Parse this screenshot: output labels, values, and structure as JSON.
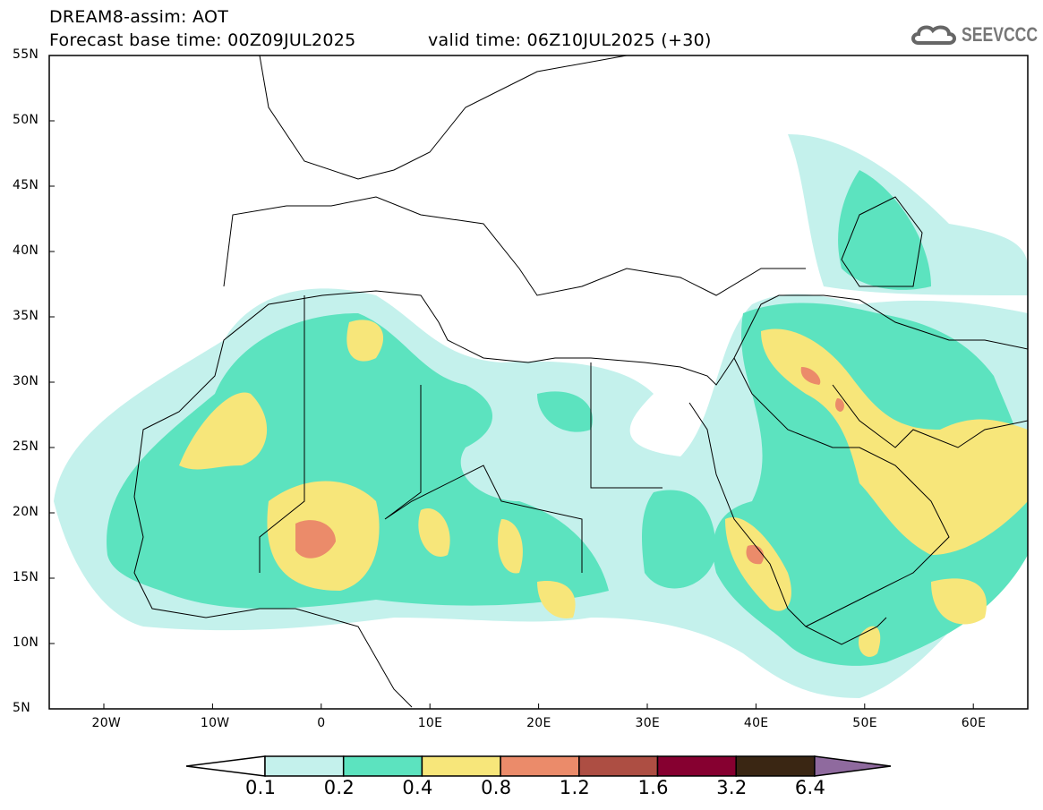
{
  "header": {
    "title": "DREAM8-assim: AOT",
    "base_time": "Forecast base time: 00Z09JUL2025",
    "valid_time": "valid time: 06Z10JUL2025 (+30)"
  },
  "logo": {
    "text": "SEEVCCC"
  },
  "axes": {
    "lat_labels": [
      "55N",
      "50N",
      "45N",
      "40N",
      "35N",
      "30N",
      "25N",
      "20N",
      "15N",
      "10N",
      "5N"
    ],
    "lon_labels": [
      "20W",
      "10W",
      "0",
      "10E",
      "20E",
      "30E",
      "40E",
      "50E",
      "60E"
    ]
  },
  "colorbar": {
    "labels": [
      "0.1",
      "0.2",
      "0.4",
      "0.8",
      "1.2",
      "1.6",
      "3.2",
      "6.4"
    ],
    "colors": [
      "#c4f1ec",
      "#5ce3bf",
      "#f7e67a",
      "#eb8b6a",
      "#ad4e43",
      "#860030",
      "#3a2613",
      "#8f6a9e"
    ]
  }
}
